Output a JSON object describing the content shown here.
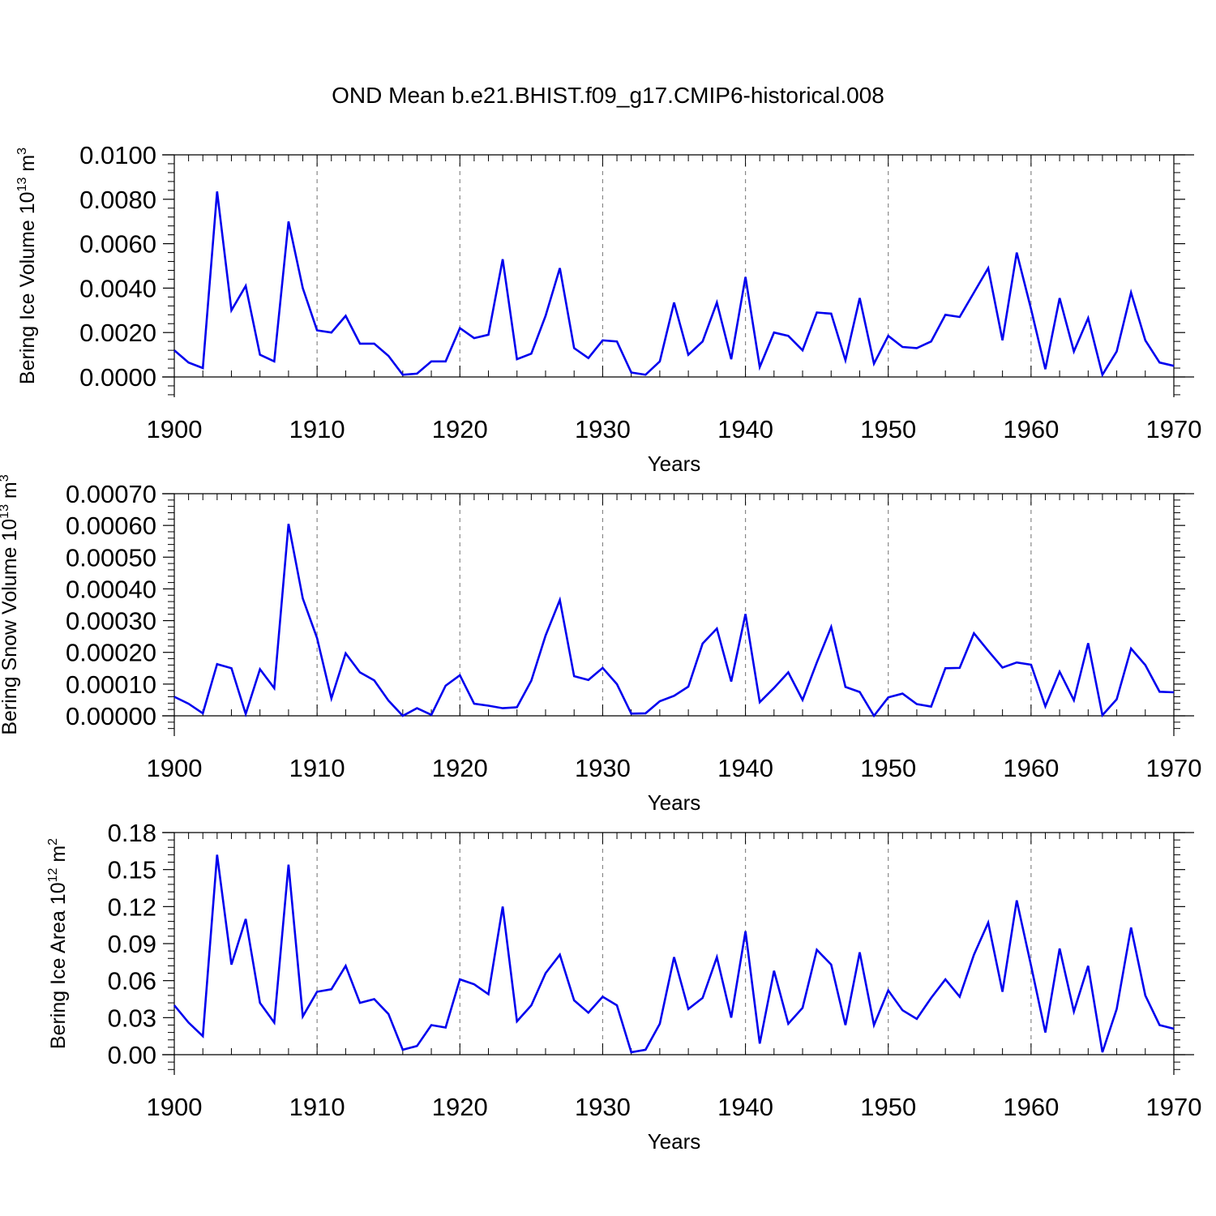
{
  "title": "OND Mean b.e21.BHIST.f09_g17.CMIP6-historical.008",
  "colors": {
    "line": "#0000ee",
    "axis": "#000000",
    "grid": "#888888"
  },
  "chart_data": [
    {
      "type": "line",
      "xlabel": "Years",
      "ylabel": {
        "text": "Bering Ice Volume 10",
        "sup": "13",
        "unit": " m",
        "unit_sup": "3"
      },
      "xlim": [
        1900,
        1970
      ],
      "ylim": [
        0,
        0.01
      ],
      "x_ticks": [
        "1900",
        "1910",
        "1920",
        "1930",
        "1940",
        "1950",
        "1960",
        "1970"
      ],
      "y_ticks": [
        {
          "value": 0,
          "label": "0.0000"
        },
        {
          "value": 0.002,
          "label": "0.0020"
        },
        {
          "value": 0.004,
          "label": "0.0040"
        },
        {
          "value": 0.006,
          "label": "0.0060"
        },
        {
          "value": 0.008,
          "label": "0.0080"
        },
        {
          "value": 0.01,
          "label": "0.0100"
        }
      ],
      "grid": "vertical dashed",
      "start_year": 1900,
      "values": [
        0.0012,
        0.00065,
        0.0004,
        0.00835,
        0.003,
        0.0041,
        0.001,
        0.0007,
        0.007,
        0.004,
        0.0021,
        0.002,
        0.00275,
        0.0015,
        0.0015,
        0.00095,
        0.0001,
        0.00015,
        0.0007,
        0.0007,
        0.0022,
        0.00175,
        0.0019,
        0.0053,
        0.0008,
        0.00105,
        0.00275,
        0.0049,
        0.0013,
        0.00085,
        0.00165,
        0.0016,
        0.0002,
        0.0001,
        0.0007,
        0.00335,
        0.001,
        0.0016,
        0.00335,
        0.0008,
        0.0045,
        0.00045,
        0.002,
        0.00185,
        0.0012,
        0.0029,
        0.00285,
        0.00075,
        0.00355,
        0.0006,
        0.00185,
        0.00135,
        0.0013,
        0.0016,
        0.0028,
        0.0027,
        0.0038,
        0.0049,
        0.00165,
        0.0056,
        0.00305,
        0.00035,
        0.00355,
        0.00115,
        0.00265,
        0.0001,
        0.00115,
        0.0038,
        0.00165,
        0.00065,
        0.0005
      ]
    },
    {
      "type": "line",
      "xlabel": "Years",
      "ylabel": {
        "text": "Bering Snow Volume 10",
        "sup": "13",
        "unit": " m",
        "unit_sup": "3"
      },
      "xlim": [
        1900,
        1970
      ],
      "ylim": [
        0,
        0.0007
      ],
      "x_ticks": [
        "1900",
        "1910",
        "1920",
        "1930",
        "1940",
        "1950",
        "1960",
        "1970"
      ],
      "y_ticks": [
        {
          "value": 0,
          "label": "0.00000"
        },
        {
          "value": 0.0001,
          "label": "0.00010"
        },
        {
          "value": 0.0002,
          "label": "0.00020"
        },
        {
          "value": 0.0003,
          "label": "0.00030"
        },
        {
          "value": 0.0004,
          "label": "0.00040"
        },
        {
          "value": 0.0005,
          "label": "0.00050"
        },
        {
          "value": 0.0006,
          "label": "0.00060"
        },
        {
          "value": 0.0007,
          "label": "0.00070"
        }
      ],
      "grid": "vertical dashed",
      "start_year": 1900,
      "values": [
        6e-05,
        3.8e-05,
        8e-06,
        0.000163,
        0.00015,
        6e-06,
        0.000147,
        8.7e-05,
        0.000605,
        0.00037,
        0.000245,
        5.5e-05,
        0.000197,
        0.000137,
        0.000112,
        4.8e-05,
        0.0,
        2.4e-05,
        3e-06,
        9.5e-05,
        0.000128,
        3.8e-05,
        3.2e-05,
        2.4e-05,
        2.7e-05,
        0.000111,
        0.000253,
        0.000365,
        0.000125,
        0.000113,
        0.000151,
        0.0001,
        7e-06,
        8e-06,
        4.6e-05,
        6.3e-05,
        9.2e-05,
        0.000228,
        0.000275,
        0.000108,
        0.000321,
        4.3e-05,
        8.8e-05,
        0.000137,
        5e-05,
        0.000168,
        0.00028,
        9.1e-05,
        7.5e-05,
        0.0,
        5.8e-05,
        7e-05,
        3.7e-05,
        2.9e-05,
        0.00015,
        0.000151,
        0.00026,
        0.000205,
        0.000152,
        0.000168,
        0.000161,
        3e-05,
        0.000139,
        4.9e-05,
        0.000229,
        2e-06,
        5.2e-05,
        0.000212,
        0.00016,
        7.6e-05,
        7.4e-05
      ]
    },
    {
      "type": "line",
      "xlabel": "Years",
      "ylabel": {
        "text": "Bering Ice Area 10",
        "sup": "12",
        "unit": " m",
        "unit_sup": "2"
      },
      "xlim": [
        1900,
        1970
      ],
      "ylim": [
        0,
        0.18
      ],
      "x_ticks": [
        "1900",
        "1910",
        "1920",
        "1930",
        "1940",
        "1950",
        "1960",
        "1970"
      ],
      "y_ticks": [
        {
          "value": 0,
          "label": "0.00"
        },
        {
          "value": 0.03,
          "label": "0.03"
        },
        {
          "value": 0.06,
          "label": "0.06"
        },
        {
          "value": 0.09,
          "label": "0.09"
        },
        {
          "value": 0.12,
          "label": "0.12"
        },
        {
          "value": 0.15,
          "label": "0.15"
        },
        {
          "value": 0.18,
          "label": "0.18"
        }
      ],
      "grid": "vertical dashed",
      "start_year": 1900,
      "values": [
        0.04,
        0.026,
        0.015,
        0.162,
        0.073,
        0.11,
        0.042,
        0.026,
        0.154,
        0.031,
        0.051,
        0.053,
        0.072,
        0.042,
        0.045,
        0.033,
        0.004,
        0.007,
        0.024,
        0.022,
        0.061,
        0.057,
        0.049,
        0.12,
        0.027,
        0.04,
        0.066,
        0.081,
        0.044,
        0.034,
        0.047,
        0.04,
        0.002,
        0.004,
        0.025,
        0.079,
        0.037,
        0.046,
        0.079,
        0.03,
        0.1,
        0.009,
        0.068,
        0.025,
        0.038,
        0.085,
        0.073,
        0.024,
        0.083,
        0.024,
        0.052,
        0.036,
        0.029,
        0.046,
        0.061,
        0.047,
        0.081,
        0.107,
        0.051,
        0.125,
        0.072,
        0.018,
        0.086,
        0.035,
        0.072,
        0.002,
        0.037,
        0.103,
        0.048,
        0.024,
        0.021
      ]
    }
  ]
}
